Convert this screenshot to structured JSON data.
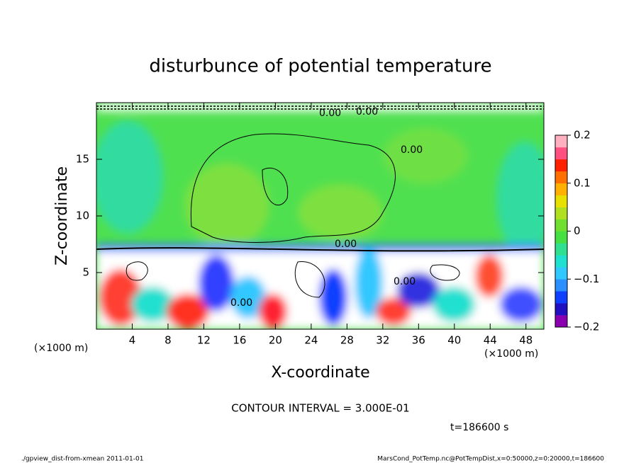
{
  "chart_data": {
    "type": "contour",
    "title": "disturbunce of potential temperature",
    "xlabel": "X-coordinate",
    "ylabel": "Z-coordinate",
    "x_unit": "(×1000 m)",
    "y_unit": "(×1000 m)",
    "xlim": [
      0,
      50
    ],
    "xticks": [
      4,
      8,
      12,
      16,
      20,
      24,
      28,
      32,
      36,
      40,
      44,
      48
    ],
    "ylim": [
      0,
      20
    ],
    "yticks": [
      5,
      10,
      15
    ],
    "clim": [
      -0.2,
      0.2
    ],
    "cticks": [
      {
        "value": -0.2,
        "label": "−0.2"
      },
      {
        "value": -0.1,
        "label": "−0.1"
      },
      0,
      0.1,
      0.2
    ],
    "colormap": [
      "#8a00b0",
      "#2010c0",
      "#1040ff",
      "#2a90ff",
      "#30c8ff",
      "#20e0d0",
      "#30e090",
      "#44e044",
      "#70e030",
      "#b0e020",
      "#e8e000",
      "#ffb000",
      "#ff7000",
      "#ff2000",
      "#ff5080",
      "#ffb0c0"
    ],
    "contour_label": "0.00",
    "contour_interval": "CONTOUR INTERVAL = 3.000E-01",
    "time_label": "t=186600 s",
    "footer_left": "./gpview_dist-from-xmean  2011-01-01",
    "footer_right": "MarsCond_PotTemp.nc@PotTempDist,x=0:50000,z=0:20000,t=186600"
  }
}
